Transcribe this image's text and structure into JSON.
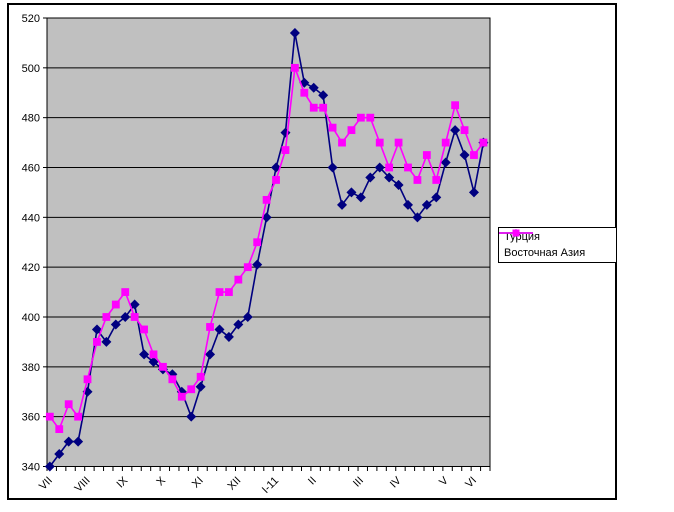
{
  "chart_data": {
    "type": "line",
    "title": "",
    "x_axis": {
      "point_count": 47,
      "labels": [
        {
          "text": "VII",
          "i": 0
        },
        {
          "text": "VIII",
          "i": 4
        },
        {
          "text": "IX",
          "i": 8
        },
        {
          "text": "X",
          "i": 12
        },
        {
          "text": "XI",
          "i": 16
        },
        {
          "text": "XII",
          "i": 20
        },
        {
          "text": "I-11",
          "i": 24
        },
        {
          "text": "II",
          "i": 28
        },
        {
          "text": "III",
          "i": 33
        },
        {
          "text": "IV",
          "i": 37
        },
        {
          "text": "V",
          "i": 42
        },
        {
          "text": "VI",
          "i": 45
        }
      ]
    },
    "y_axis": {
      "min": 340,
      "max": 520,
      "step": 20
    },
    "series": [
      {
        "name": "Турция",
        "color": "#000080",
        "marker": "diamond",
        "values": [
          340,
          345,
          350,
          350,
          370,
          395,
          390,
          397,
          400,
          405,
          385,
          382,
          379,
          377,
          370,
          360,
          372,
          385,
          395,
          392,
          397,
          400,
          421,
          440,
          460,
          474,
          514,
          494,
          492,
          489,
          460,
          445,
          450,
          448,
          456,
          460,
          456,
          453,
          445,
          440,
          445,
          448,
          462,
          475,
          465,
          450,
          470
        ]
      },
      {
        "name": "Восточная Азия",
        "color": "#FF00FF",
        "marker": "square",
        "values": [
          360,
          355,
          365,
          360,
          375,
          390,
          400,
          405,
          410,
          400,
          395,
          385,
          380,
          375,
          368,
          371,
          376,
          396,
          410,
          410,
          415,
          420,
          430,
          447,
          455,
          467,
          500,
          490,
          484,
          484,
          476,
          470,
          475,
          480,
          480,
          470,
          460,
          470,
          460,
          455,
          465,
          455,
          470,
          485,
          475,
          465,
          470
        ]
      }
    ],
    "legend": {
      "position": "right"
    },
    "style": {
      "plot_bg": "#C0C0C0",
      "grid_color": "#000000",
      "axis_color": "#000000",
      "text_color": "#000000",
      "frame_bg": "#FFFFFF",
      "grid": "on"
    }
  }
}
